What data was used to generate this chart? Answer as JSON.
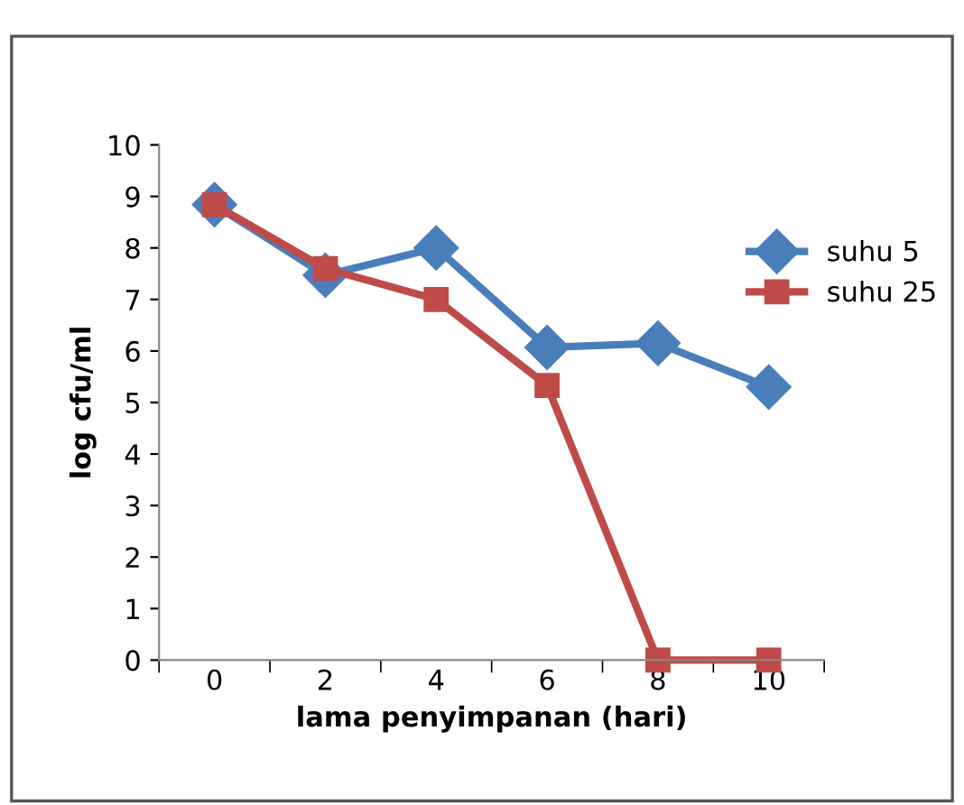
{
  "chart_data": {
    "type": "line",
    "xlabel": "lama penyimpanan (hari)",
    "ylabel": "log cfu/ml",
    "categories": [
      "0",
      "2",
      "4",
      "6",
      "8",
      "10"
    ],
    "series": [
      {
        "name": "suhu 5",
        "color": "#4a7ebb",
        "marker": "diamond",
        "values": [
          8.84,
          7.47,
          8.0,
          6.07,
          6.15,
          5.3
        ]
      },
      {
        "name": "suhu 25",
        "color": "#be4b48",
        "marker": "square",
        "values": [
          8.84,
          7.6,
          7.0,
          5.33,
          0,
          0
        ]
      }
    ],
    "ylim": [
      0,
      10
    ],
    "yticks": [
      0,
      1,
      2,
      3,
      4,
      5,
      6,
      7,
      8,
      9,
      10
    ],
    "grid": false,
    "legend": "right",
    "line_style": "solid"
  }
}
